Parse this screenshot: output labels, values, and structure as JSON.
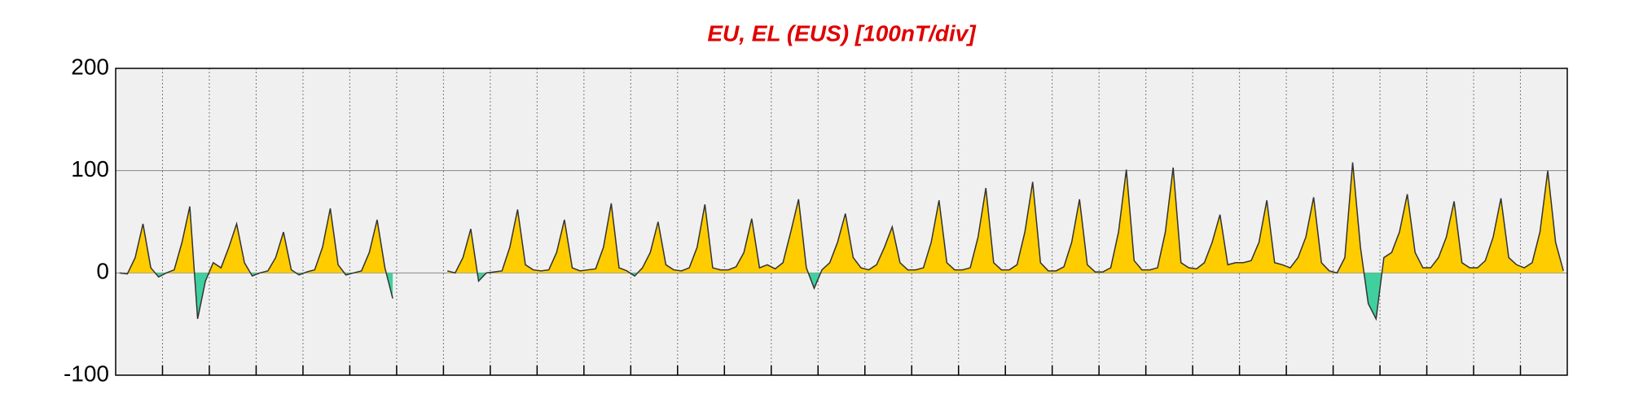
{
  "chart_data": {
    "type": "area",
    "title": "EU, EL (EUS)  [100nT/div]",
    "x": [
      2,
      6,
      10,
      14,
      18,
      22,
      26,
      30,
      34,
      38,
      42,
      46,
      50,
      54,
      58,
      62,
      66,
      70,
      74,
      78,
      82,
      86,
      90,
      94,
      98,
      102,
      106,
      110,
      114,
      118,
      122,
      126,
      130,
      134,
      138,
      142,
      146,
      150,
      154,
      158,
      162,
      166,
      170,
      174,
      178,
      182,
      186,
      190,
      194,
      198,
      202,
      206,
      210,
      214,
      218,
      222,
      226,
      230,
      234,
      238,
      242,
      246,
      250,
      254,
      258,
      262,
      266,
      270,
      274,
      278,
      282,
      286,
      290,
      294,
      298,
      302,
      306,
      310,
      314,
      318,
      322,
      326,
      330,
      334,
      338,
      342,
      346,
      350,
      354,
      358,
      362,
      366,
      370,
      374,
      378,
      382,
      386,
      390,
      394,
      398,
      402,
      406,
      410,
      414,
      418,
      422,
      426,
      430,
      434,
      438,
      442,
      446,
      450,
      454,
      458,
      462,
      466,
      470,
      474,
      478,
      482,
      486,
      490,
      494,
      498,
      502,
      506,
      510,
      514,
      518,
      522,
      526,
      530,
      534,
      538,
      542,
      546,
      550,
      554,
      558,
      562,
      566,
      570,
      574,
      578,
      582,
      586,
      590,
      594,
      598,
      602,
      606,
      610,
      614,
      618,
      622,
      626,
      630,
      634,
      638,
      642,
      646,
      650,
      654,
      658,
      662,
      666,
      670,
      674,
      678,
      682,
      686,
      690,
      694,
      698,
      702,
      706,
      710,
      714,
      718,
      722,
      726,
      730,
      734,
      738,
      742
    ],
    "series": [
      {
        "color": "#333333",
        "values": [
          0,
          -1,
          15,
          48,
          5,
          -4,
          0,
          3,
          30,
          65,
          -45,
          -8,
          10,
          5,
          25,
          48,
          10,
          -3,
          0,
          2,
          15,
          40,
          3,
          -2,
          1,
          3,
          25,
          63,
          8,
          -2,
          0,
          2,
          20,
          52,
          5,
          -25,
          null,
          null,
          null,
          null,
          null,
          null,
          2,
          0,
          15,
          43,
          -8,
          0,
          1,
          2,
          25,
          62,
          8,
          3,
          2,
          3,
          20,
          52,
          5,
          2,
          3,
          4,
          25,
          68,
          5,
          2,
          -3,
          5,
          20,
          50,
          8,
          3,
          2,
          5,
          25,
          67,
          5,
          3,
          3,
          6,
          20,
          53,
          5,
          8,
          4,
          10,
          40,
          72,
          5,
          -15,
          3,
          10,
          30,
          58,
          15,
          5,
          3,
          8,
          25,
          45,
          10,
          3,
          3,
          5,
          30,
          71,
          10,
          3,
          3,
          5,
          35,
          83,
          10,
          3,
          3,
          8,
          40,
          89,
          10,
          2,
          2,
          6,
          30,
          72,
          8,
          1,
          1,
          5,
          40,
          101,
          12,
          3,
          3,
          5,
          40,
          103,
          10,
          5,
          4,
          10,
          30,
          57,
          8,
          10,
          10,
          12,
          30,
          71,
          10,
          8,
          5,
          15,
          35,
          74,
          10,
          2,
          0,
          15,
          108,
          25,
          -30,
          -45,
          15,
          20,
          40,
          77,
          20,
          5,
          5,
          15,
          35,
          70,
          10,
          5,
          5,
          12,
          35,
          73,
          15,
          8,
          5,
          10,
          40,
          100,
          30,
          2
        ]
      }
    ],
    "fill_positive": "#ffcc00",
    "fill_negative": "#40d0a0",
    "xlim": [
      0,
      744
    ],
    "xticks": [
      24,
      48,
      72,
      96,
      120,
      144,
      168,
      192,
      216,
      240,
      264,
      288,
      312,
      336,
      360,
      384,
      408,
      432,
      456,
      480,
      504,
      528,
      552,
      576,
      600,
      624,
      648,
      672,
      696,
      720
    ],
    "ylim": [
      -100,
      200
    ],
    "yticks": [
      -100,
      0,
      100,
      200
    ],
    "grid": true
  }
}
